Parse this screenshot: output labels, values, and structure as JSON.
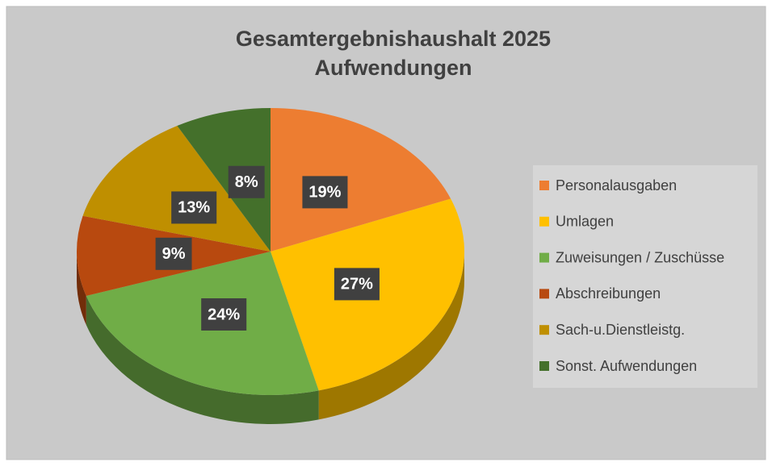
{
  "chart_data": {
    "type": "pie",
    "title": [
      "Gesamtergebnishaushalt 2025",
      "Aufwendungen"
    ],
    "categories": [
      "Personalausgaben",
      "Umlagen",
      "Zuweisungen / Zuschüsse",
      "Abschreibungen",
      "Sach-u.Dienstleistg.",
      "Sonst. Aufwendungen"
    ],
    "values": [
      19,
      27,
      24,
      9,
      13,
      8
    ],
    "value_labels": [
      "19%",
      "27%",
      "24%",
      "9%",
      "13%",
      "8%"
    ],
    "colors": [
      "#ED7D31",
      "#FFC000",
      "#70AD47",
      "#B8490F",
      "#BF8F00",
      "#44702B"
    ],
    "legend": "right"
  }
}
